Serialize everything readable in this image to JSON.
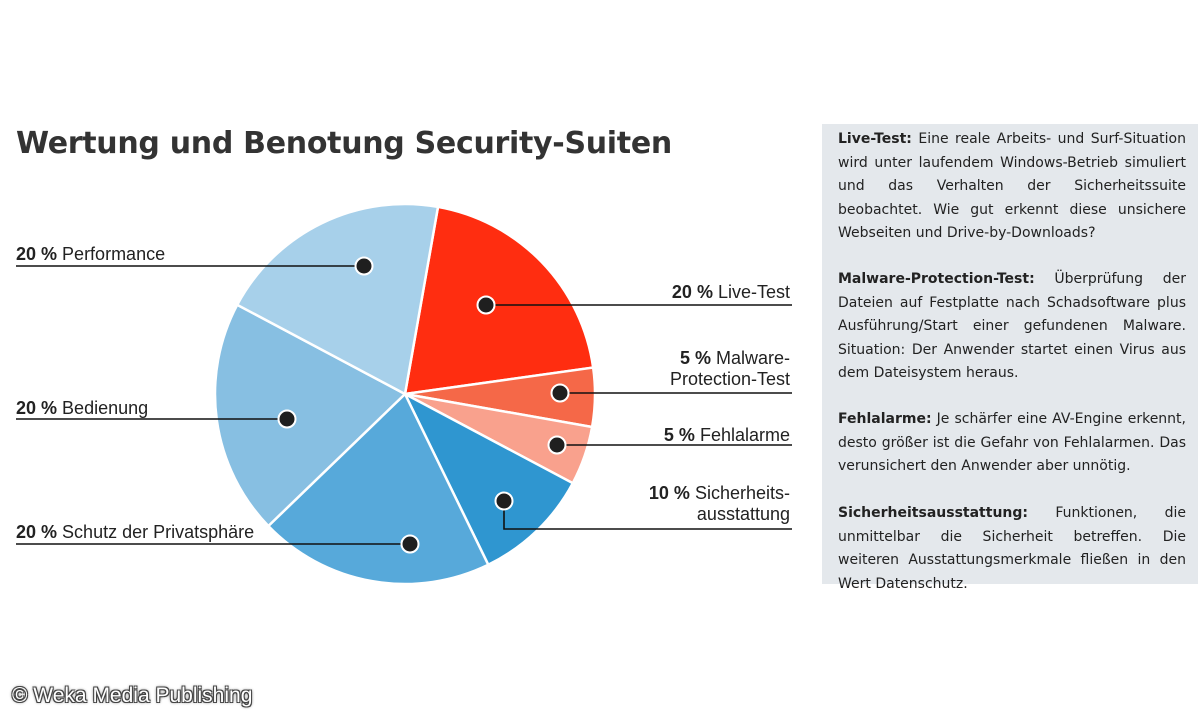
{
  "title": "Wertung und Benotung Security-Suiten",
  "chart_data": {
    "type": "pie",
    "title": "Wertung und Benotung Security-Suiten",
    "unit": "%",
    "slices": [
      {
        "name": "Live-Test",
        "pct_label": "20 %",
        "value": 20,
        "color": "#ff2d10"
      },
      {
        "name": "Malware-Protection-Test",
        "pct_label": "5 %",
        "value": 5,
        "color": "#f56848"
      },
      {
        "name": "Fehlalarme",
        "pct_label": "5 %",
        "value": 5,
        "color": "#f9a18d"
      },
      {
        "name": "Sicherheitsausstattung",
        "pct_label": "10 %",
        "value": 10,
        "color": "#2f96d0"
      },
      {
        "name": "Schutz der Privatsphäre",
        "pct_label": "20 %",
        "value": 20,
        "color": "#57a9da"
      },
      {
        "name": "Bedienung",
        "pct_label": "20 %",
        "value": 20,
        "color": "#87bfe2"
      },
      {
        "name": "Performance",
        "pct_label": "20 %",
        "value": 20,
        "color": "#a7d0ea"
      }
    ]
  },
  "labels": {
    "performance": {
      "pct": "20 %",
      "text": "Performance"
    },
    "bedienung": {
      "pct": "20 %",
      "text": "Bedienung"
    },
    "privatsphaere": {
      "pct": "20 %",
      "text": "Schutz der Privatsphäre"
    },
    "livetest": {
      "pct": "20 %",
      "text": "Live-Test"
    },
    "malware": {
      "pct": "5 %",
      "line1": "Malware-",
      "line2": "Protection-Test"
    },
    "fehlalarme": {
      "pct": "5 %",
      "text": "Fehlalarme"
    },
    "sicherheit": {
      "pct": "10 %",
      "line1": "Sicherheits-",
      "line2": "ausstattung"
    }
  },
  "notes": [
    {
      "term": "Live-Test:",
      "text": " Eine reale Arbeits- und Surf-Situation wird unter laufendem Windows-Betrieb simuliert und das Verhalten der Sicherheitssuite beobachtet. Wie gut erkennt diese unsichere Webseiten und Drive-by-Downloads?"
    },
    {
      "term": "Malware-Protection-Test:",
      "text": " Überprüfung der Dateien auf Festplatte nach Schadsoftware plus Ausführung/Start einer gefundenen Malware. Situation: Der Anwender startet einen Virus aus dem Dateisystem heraus."
    },
    {
      "term": "Fehlalarme:",
      "text": " Je schärfer eine AV-Engine erkennt, desto größer ist die Gefahr von Fehlalarmen. Das verunsichert den Anwender aber unnötig."
    },
    {
      "term": "Sicherheitsausstattung:",
      "text": " Funktionen, die unmittelbar die Sicherheit betreffen. Die weiteren Ausstattungsmerkmale fließen in den Wert Datenschutz."
    }
  ],
  "credit": "© Weka Media Publishing"
}
